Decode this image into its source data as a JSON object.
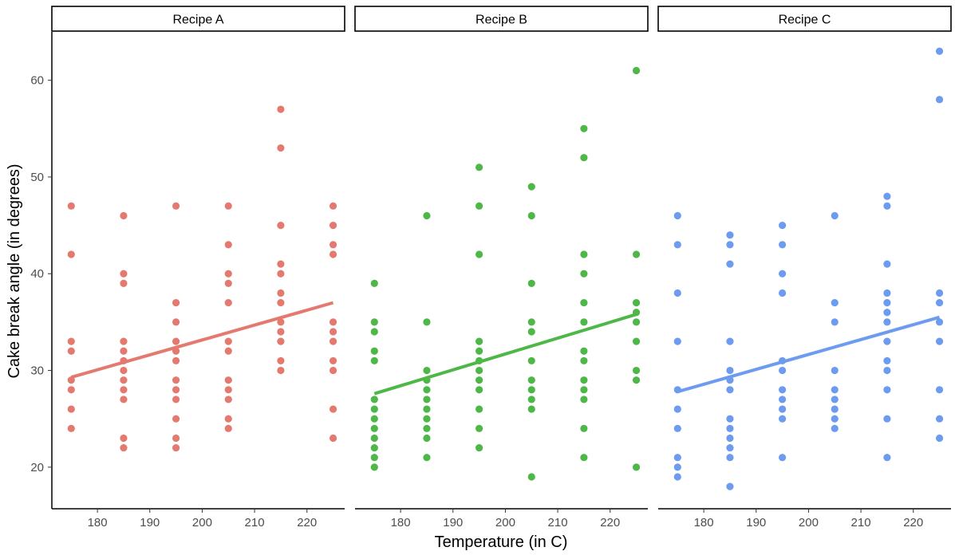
{
  "chart_data": {
    "type": "scatter",
    "title": "",
    "xlabel": "Temperature (in C)",
    "ylabel": "Cake break angle (in degrees)",
    "xlim": [
      171.3,
      227.2
    ],
    "ylim": [
      15.7,
      65.0
    ],
    "xticks": [
      180,
      190,
      200,
      210,
      220
    ],
    "yticks": [
      20,
      30,
      40,
      50,
      60
    ],
    "grid": false,
    "legend": "none",
    "panels": [
      {
        "name": "Recipe A",
        "color": "#E47A6F",
        "trend": {
          "x": [
            175,
            225
          ],
          "y": [
            29.3,
            37.0
          ]
        },
        "points": [
          {
            "x": 175,
            "y": [
              47,
              42,
              33,
              32,
              29,
              28,
              26,
              24
            ]
          },
          {
            "x": 185,
            "y": [
              46,
              40,
              39,
              33,
              32,
              31,
              30,
              29,
              28,
              27,
              23,
              22
            ]
          },
          {
            "x": 195,
            "y": [
              47,
              37,
              35,
              33,
              32,
              31,
              29,
              28,
              27,
              25,
              23,
              22
            ]
          },
          {
            "x": 205,
            "y": [
              47,
              43,
              40,
              39,
              37,
              33,
              32,
              29,
              28,
              27,
              25,
              24
            ]
          },
          {
            "x": 215,
            "y": [
              57,
              53,
              45,
              41,
              40,
              38,
              37,
              35,
              34,
              33,
              31,
              30
            ]
          },
          {
            "x": 225,
            "y": [
              47,
              45,
              43,
              42,
              35,
              34,
              33,
              31,
              30,
              26,
              23
            ]
          }
        ]
      },
      {
        "name": "Recipe B",
        "color": "#4DB847",
        "trend": {
          "x": [
            175,
            225
          ],
          "y": [
            27.6,
            35.8
          ]
        },
        "points": [
          {
            "x": 175,
            "y": [
              39,
              35,
              34,
              32,
              31,
              27,
              26,
              25,
              24,
              23,
              22,
              21,
              20
            ]
          },
          {
            "x": 185,
            "y": [
              46,
              35,
              30,
              29,
              28,
              27,
              26,
              25,
              24,
              23,
              21
            ]
          },
          {
            "x": 195,
            "y": [
              51,
              47,
              42,
              33,
              32,
              31,
              30,
              29,
              28,
              26,
              24,
              22
            ]
          },
          {
            "x": 205,
            "y": [
              49,
              46,
              39,
              35,
              34,
              31,
              29,
              28,
              27,
              26,
              19
            ]
          },
          {
            "x": 215,
            "y": [
              55,
              52,
              42,
              40,
              37,
              35,
              32,
              31,
              29,
              28,
              27,
              24,
              21
            ]
          },
          {
            "x": 225,
            "y": [
              61,
              42,
              37,
              36,
              35,
              33,
              30,
              29,
              20
            ]
          }
        ]
      },
      {
        "name": "Recipe C",
        "color": "#6C9BEF",
        "trend": {
          "x": [
            175,
            225
          ],
          "y": [
            27.8,
            35.5
          ]
        },
        "points": [
          {
            "x": 175,
            "y": [
              46,
              43,
              38,
              33,
              28,
              26,
              24,
              21,
              20,
              19
            ]
          },
          {
            "x": 185,
            "y": [
              44,
              43,
              41,
              33,
              30,
              29,
              28,
              25,
              24,
              23,
              22,
              21,
              18
            ]
          },
          {
            "x": 195,
            "y": [
              45,
              43,
              40,
              38,
              31,
              30,
              28,
              27,
              26,
              25,
              21
            ]
          },
          {
            "x": 205,
            "y": [
              46,
              37,
              35,
              30,
              28,
              27,
              26,
              25,
              24
            ]
          },
          {
            "x": 215,
            "y": [
              48,
              47,
              41,
              38,
              37,
              36,
              35,
              33,
              31,
              30,
              28,
              25,
              21
            ]
          },
          {
            "x": 225,
            "y": [
              63,
              58,
              38,
              37,
              35,
              33,
              28,
              25,
              23
            ]
          }
        ]
      }
    ]
  }
}
